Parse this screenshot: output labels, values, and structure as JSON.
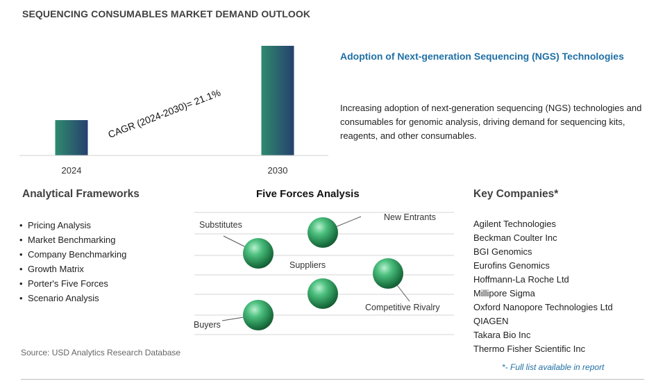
{
  "page": {
    "title": "SEQUENCING CONSUMABLES MARKET DEMAND OUTLOOK",
    "source": "Source: USD Analytics Research Database"
  },
  "chart_data": {
    "type": "bar",
    "categories": [
      "2024",
      "2030"
    ],
    "values": [
      1,
      3.1
    ],
    "cagr_label": "CAGR (2024-2030)=  21.1%",
    "bar_gradient": [
      "#2f8a6e",
      "#26406e"
    ],
    "grid": false,
    "title": "",
    "xlabel": "",
    "ylabel": ""
  },
  "ngs": {
    "title": "Adoption of Next-generation Sequencing (NGS) Technologies",
    "description": "Increasing adoption of next-generation sequencing (NGS) technologies and consumables for genomic analysis, driving demand for sequencing kits, reagents, and other consumables."
  },
  "frameworks": {
    "title": "Analytical Frameworks",
    "items": [
      "Pricing Analysis",
      "Market Benchmarking",
      "Company Benchmarking",
      "Growth Matrix",
      "Porter's Five Forces",
      "Scenario Analysis"
    ]
  },
  "five_forces": {
    "title": "Five Forces Analysis",
    "labels": {
      "substitutes": "Substitutes",
      "new_entrants": "New Entrants",
      "suppliers": "Suppliers",
      "competitive_rivalry": "Competitive Rivalry",
      "buyers": "Buyers"
    },
    "sphere_color": "#3aa86b"
  },
  "companies": {
    "title": "Key Companies*",
    "items": [
      "Agilent Technologies",
      "Beckman Coulter Inc",
      "BGI Genomics",
      "Eurofins Genomics",
      "Hoffmann-La Roche Ltd",
      "Millipore Sigma",
      "Oxford Nanopore Technologies Ltd",
      "QIAGEN",
      "Takara Bio Inc",
      "Thermo Fisher Scientific Inc"
    ],
    "note": "*- Full list available in report"
  }
}
